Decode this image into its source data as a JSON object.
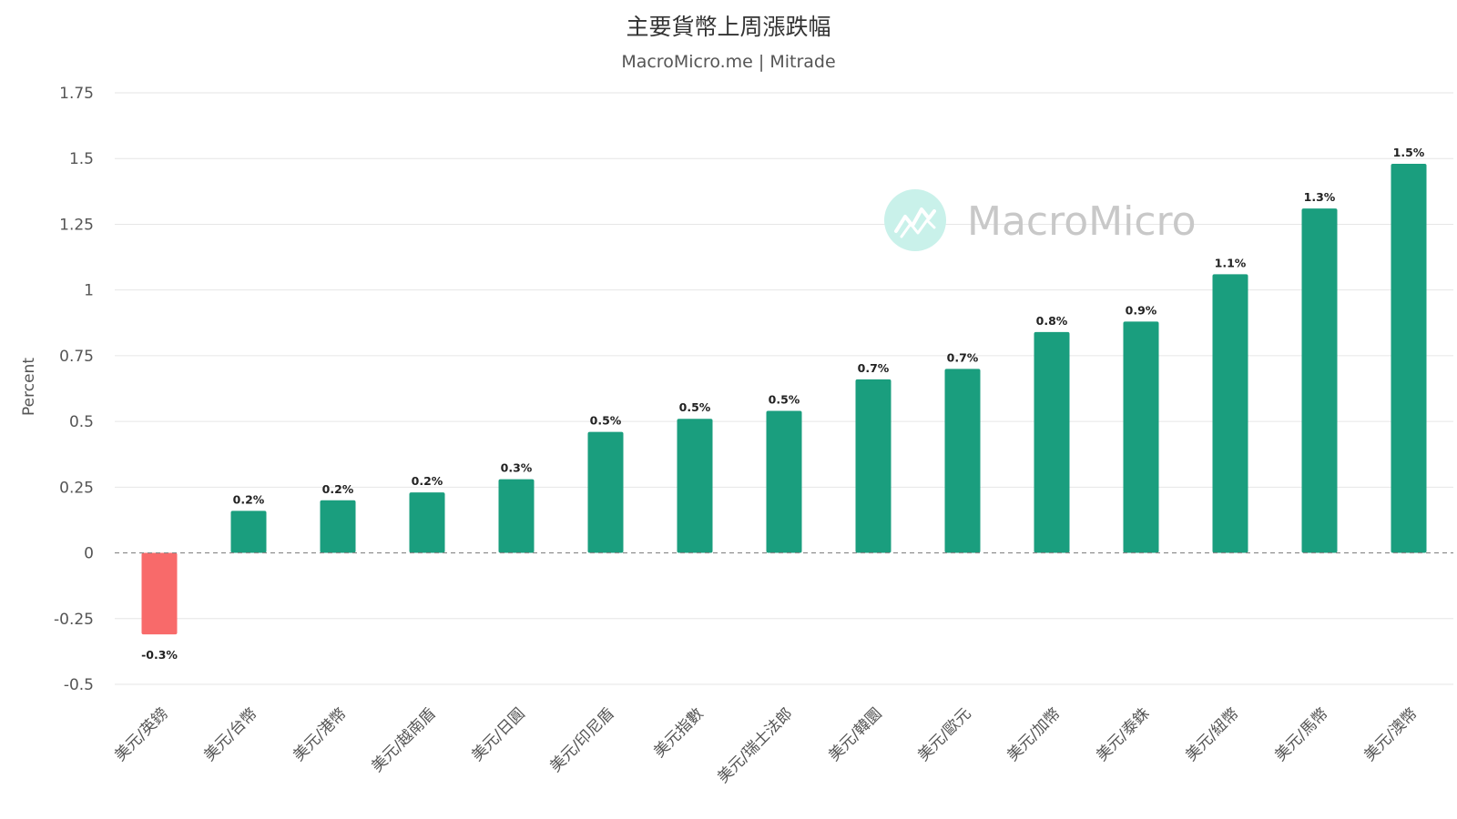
{
  "chart_data": {
    "type": "bar",
    "title": "主要貨幣上周漲跌幅",
    "subtitle": "MacroMicro.me | Mitrade",
    "ylabel": "Percent",
    "xlabel": "",
    "ylim": [
      -0.5,
      1.75
    ],
    "yticks": [
      "1.75",
      "1.5",
      "1.25",
      "1",
      "0.75",
      "0.5",
      "0.25",
      "0",
      "-0.25",
      "-0.5"
    ],
    "categories": [
      "美元/英鎊",
      "美元/台幣",
      "美元/港幣",
      "美元/越南盾",
      "美元/日圓",
      "美元/印尼盾",
      "美元指數",
      "美元/瑞士法郎",
      "美元/韓圜",
      "美元/歐元",
      "美元/加幣",
      "美元/泰銖",
      "美元/紐幣",
      "美元/馬幣",
      "美元/澳幣"
    ],
    "values": [
      -0.31,
      0.16,
      0.2,
      0.23,
      0.28,
      0.46,
      0.51,
      0.54,
      0.66,
      0.7,
      0.84,
      0.88,
      1.06,
      1.31,
      1.48
    ],
    "data_labels": [
      "-0.3%",
      "0.2%",
      "0.2%",
      "0.2%",
      "0.3%",
      "0.5%",
      "0.5%",
      "0.5%",
      "0.7%",
      "0.7%",
      "0.8%",
      "0.9%",
      "1.1%",
      "1.3%",
      "1.5%"
    ],
    "grid": true,
    "legend": "none",
    "colors": {
      "positive": "#1a9e7e",
      "negative": "#f86a6a",
      "grid": "#e6e6e6",
      "zero_line": "#888888"
    }
  },
  "watermark": {
    "text": "MacroMicro",
    "circle_color": "#c9f1ea",
    "icon_color": "#ffffff"
  }
}
